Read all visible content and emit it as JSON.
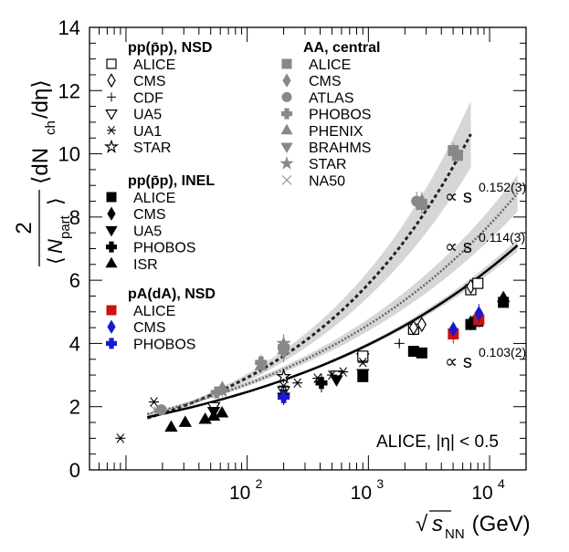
{
  "chart_data": {
    "type": "scatter",
    "xscale": "log",
    "xlim": [
      5,
      20000
    ],
    "ylim": [
      0,
      14
    ],
    "xticks": [
      {
        "v": 100,
        "b": "10",
        "e": "2"
      },
      {
        "v": 1000,
        "b": "10",
        "e": "3"
      },
      {
        "v": 10000,
        "b": "10",
        "e": "4"
      }
    ],
    "yticks": [
      0,
      2,
      4,
      6,
      8,
      10,
      12,
      14
    ],
    "xlabel": {
      "pre": "√",
      "s": "s",
      "sub": "NN",
      "post": " (GeV)"
    },
    "ylabel": {
      "num": "2",
      "den_a": "⟨",
      "den_n": "N",
      "den_sub": "part",
      "den_b": "⟩",
      "rhs_a": "⟨dN",
      "rhs_sub": "ch",
      "rhs_b": "/dη⟩"
    },
    "annotation": {
      "text": "ALICE, |η| < 0.5"
    },
    "fits": [
      {
        "name": "AA",
        "label": "∝ s",
        "exp": "0.152(3)",
        "a": 0.72,
        "b": 0.304,
        "from": 15,
        "to": 7000,
        "dash": "4,3",
        "color": "#222",
        "band": 0.3
      },
      {
        "name": "pp NSD",
        "label": "∝ s",
        "exp": "0.114(3)",
        "a": 0.95,
        "b": 0.228,
        "from": 15,
        "to": 17000,
        "dash": "2,2",
        "color": "#666",
        "band": 0.2
      },
      {
        "name": "pp INEL",
        "label": "∝ s",
        "exp": "0.103(2)",
        "a": 0.955,
        "b": 0.206,
        "from": 15,
        "to": 17000,
        "dash": "",
        "color": "#000",
        "band": 0.08
      }
    ],
    "legend_groups": [
      {
        "title": "pp(p̄p), NSD",
        "items": [
          {
            "name": "ALICE",
            "marker": "open-square",
            "color": "#000"
          },
          {
            "name": "CMS",
            "marker": "open-diamond",
            "color": "#000"
          },
          {
            "name": "CDF",
            "marker": "thin-cross",
            "color": "#000"
          },
          {
            "name": "UA5",
            "marker": "open-triangle-down",
            "color": "#000"
          },
          {
            "name": "UA1",
            "marker": "asterisk",
            "color": "#000"
          },
          {
            "name": "STAR",
            "marker": "open-star",
            "color": "#000"
          }
        ]
      },
      {
        "title": "pp(p̄p), INEL",
        "items": [
          {
            "name": "ALICE",
            "marker": "square",
            "color": "#000"
          },
          {
            "name": "CMS",
            "marker": "diamond",
            "color": "#000"
          },
          {
            "name": "UA5",
            "marker": "triangle-down",
            "color": "#000"
          },
          {
            "name": "PHOBOS",
            "marker": "cross",
            "color": "#000"
          },
          {
            "name": "ISR",
            "marker": "triangle-up",
            "color": "#000"
          }
        ]
      },
      {
        "title": "pA(dA), NSD",
        "items": [
          {
            "name": "ALICE",
            "marker": "square",
            "color": "#cc1111"
          },
          {
            "name": "CMS",
            "marker": "diamond",
            "color": "#1a1acc"
          },
          {
            "name": "PHOBOS",
            "marker": "cross",
            "color": "#1a1acc"
          }
        ]
      },
      {
        "title": "AA, central",
        "items": [
          {
            "name": "ALICE",
            "marker": "square",
            "color": "#888"
          },
          {
            "name": "CMS",
            "marker": "diamond",
            "color": "#888"
          },
          {
            "name": "ATLAS",
            "marker": "circle",
            "color": "#888"
          },
          {
            "name": "PHOBOS",
            "marker": "cross",
            "color": "#888"
          },
          {
            "name": "PHENIX",
            "marker": "triangle-up",
            "color": "#888"
          },
          {
            "name": "BRAHMS",
            "marker": "triangle-down",
            "color": "#888"
          },
          {
            "name": "STAR",
            "marker": "star",
            "color": "#888"
          },
          {
            "name": "NA50",
            "marker": "thin-x",
            "color": "#888"
          }
        ]
      }
    ],
    "series": [
      {
        "name": "AA central",
        "points": [
          {
            "x": 17.3,
            "y": 1.9,
            "m": "thin-x",
            "c": "#888",
            "e": 0.1
          },
          {
            "x": 19.6,
            "y": 1.9,
            "m": "circle",
            "c": "#888",
            "e": 0.1
          },
          {
            "x": 56,
            "y": 2.45,
            "m": "cross",
            "c": "#888",
            "e": 0.15
          },
          {
            "x": 62.4,
            "y": 2.6,
            "m": "triangle-up",
            "c": "#888",
            "e": 0.2
          },
          {
            "x": 62.4,
            "y": 2.5,
            "m": "star",
            "c": "#888",
            "e": 0.2
          },
          {
            "x": 130,
            "y": 3.4,
            "m": "cross",
            "c": "#888",
            "e": 0.25
          },
          {
            "x": 130,
            "y": 3.3,
            "m": "triangle-up",
            "c": "#888",
            "e": 0.25
          },
          {
            "x": 200,
            "y": 3.9,
            "m": "cross",
            "c": "#888",
            "e": 0.3
          },
          {
            "x": 200,
            "y": 3.8,
            "m": "triangle-up",
            "c": "#888",
            "e": 0.3
          },
          {
            "x": 200,
            "y": 3.7,
            "m": "triangle-down",
            "c": "#888",
            "e": 0.3
          },
          {
            "x": 200,
            "y": 4.0,
            "m": "star",
            "c": "#888",
            "e": 0.3
          },
          {
            "x": 2760,
            "y": 8.4,
            "m": "square",
            "c": "#888",
            "e": 0.3
          },
          {
            "x": 2760,
            "y": 8.5,
            "m": "diamond",
            "c": "#888",
            "e": 0.3
          },
          {
            "x": 2500,
            "y": 8.5,
            "m": "circle",
            "c": "#888",
            "e": 0.3
          },
          {
            "x": 5020,
            "y": 10.1,
            "m": "square",
            "c": "#888",
            "e": 0.25
          },
          {
            "x": 5440,
            "y": 9.95,
            "m": "square",
            "c": "#888",
            "e": 0.25
          }
        ]
      },
      {
        "name": "pp NSD",
        "points": [
          {
            "x": 53,
            "y": 2.0,
            "m": "open-triangle-down",
            "c": "#000",
            "e": 0.05
          },
          {
            "x": 200,
            "y": 2.5,
            "m": "open-triangle-down",
            "c": "#000",
            "e": 0.05
          },
          {
            "x": 200,
            "y": 2.95,
            "m": "open-star",
            "c": "#000",
            "e": 0.2
          },
          {
            "x": 546,
            "y": 3.0,
            "m": "open-triangle-down",
            "c": "#000",
            "e": 0.05
          },
          {
            "x": 900,
            "y": 3.55,
            "m": "open-triangle-down",
            "c": "#000",
            "e": 0.05
          },
          {
            "x": 900,
            "y": 3.6,
            "m": "open-square",
            "c": "#000",
            "e": 0.08
          },
          {
            "x": 1800,
            "y": 4.0,
            "m": "thin-cross",
            "c": "#000",
            "e": 0.08
          },
          {
            "x": 2360,
            "y": 4.45,
            "m": "open-square",
            "c": "#000",
            "e": 0.08
          },
          {
            "x": 2360,
            "y": 4.5,
            "m": "open-diamond",
            "c": "#000",
            "e": 0.1
          },
          {
            "x": 2760,
            "y": 4.6,
            "m": "open-diamond",
            "c": "#000",
            "e": 0.1
          },
          {
            "x": 7000,
            "y": 5.7,
            "m": "open-square",
            "c": "#000",
            "e": 0.12
          },
          {
            "x": 7000,
            "y": 5.8,
            "m": "open-diamond",
            "c": "#000",
            "e": 0.15
          },
          {
            "x": 8000,
            "y": 5.9,
            "m": "open-square",
            "c": "#000",
            "e": 0.12
          },
          {
            "x": 200,
            "y": 2.65,
            "m": "asterisk",
            "c": "#000",
            "e": 0.05
          },
          {
            "x": 260,
            "y": 2.75,
            "m": "asterisk",
            "c": "#000",
            "e": 0.05
          },
          {
            "x": 380,
            "y": 2.9,
            "m": "asterisk",
            "c": "#000",
            "e": 0.05
          },
          {
            "x": 500,
            "y": 3.0,
            "m": "asterisk",
            "c": "#000",
            "e": 0.05
          },
          {
            "x": 620,
            "y": 3.1,
            "m": "asterisk",
            "c": "#000",
            "e": 0.05
          },
          {
            "x": 900,
            "y": 3.4,
            "m": "asterisk",
            "c": "#000",
            "e": 0.05
          },
          {
            "x": 9,
            "y": 1.0,
            "m": "asterisk",
            "c": "#000",
            "e": 0.05
          },
          {
            "x": 17,
            "y": 2.15,
            "m": "asterisk",
            "c": "#000",
            "e": 0.05
          }
        ]
      },
      {
        "name": "pp INEL",
        "points": [
          {
            "x": 23.6,
            "y": 1.35,
            "m": "triangle-up",
            "c": "#000",
            "e": 0.05
          },
          {
            "x": 30.8,
            "y": 1.5,
            "m": "triangle-up",
            "c": "#000",
            "e": 0.05
          },
          {
            "x": 45,
            "y": 1.6,
            "m": "triangle-up",
            "c": "#000",
            "e": 0.05
          },
          {
            "x": 53,
            "y": 1.7,
            "m": "triangle-up",
            "c": "#000",
            "e": 0.05
          },
          {
            "x": 62,
            "y": 1.8,
            "m": "triangle-up",
            "c": "#000",
            "e": 0.05
          },
          {
            "x": 53,
            "y": 1.85,
            "m": "triangle-down",
            "c": "#000",
            "e": 0.05
          },
          {
            "x": 200,
            "y": 2.3,
            "m": "triangle-down",
            "c": "#000",
            "e": 0.05
          },
          {
            "x": 200,
            "y": 2.35,
            "m": "cross",
            "c": "#000",
            "e": 0.3
          },
          {
            "x": 410,
            "y": 2.75,
            "m": "cross",
            "c": "#000",
            "e": 0.3
          },
          {
            "x": 546,
            "y": 2.85,
            "m": "triangle-down",
            "c": "#000",
            "e": 0.05
          },
          {
            "x": 900,
            "y": 2.95,
            "m": "square",
            "c": "#000",
            "e": 0.08
          },
          {
            "x": 900,
            "y": 3.05,
            "m": "triangle-down",
            "c": "#000",
            "e": 0.05
          },
          {
            "x": 2360,
            "y": 3.75,
            "m": "square",
            "c": "#000",
            "e": 0.1
          },
          {
            "x": 2760,
            "y": 3.7,
            "m": "square",
            "c": "#000",
            "e": 0.1
          },
          {
            "x": 7000,
            "y": 4.6,
            "m": "square",
            "c": "#000",
            "e": 0.12
          },
          {
            "x": 7000,
            "y": 4.65,
            "m": "diamond",
            "c": "#000",
            "e": 0.15
          },
          {
            "x": 8000,
            "y": 4.7,
            "m": "square",
            "c": "#000",
            "e": 0.12
          },
          {
            "x": 13000,
            "y": 5.3,
            "m": "square",
            "c": "#000",
            "e": 0.15
          },
          {
            "x": 13000,
            "y": 5.45,
            "m": "triangle-up",
            "c": "#000",
            "e": 0.15
          }
        ]
      },
      {
        "name": "pA NSD",
        "points": [
          {
            "x": 200,
            "y": 2.3,
            "m": "cross",
            "c": "#1a1acc",
            "e": 0.1
          },
          {
            "x": 5020,
            "y": 4.3,
            "m": "square",
            "c": "#cc1111",
            "e": 0.3
          },
          {
            "x": 5020,
            "y": 4.45,
            "m": "diamond",
            "c": "#1a1acc",
            "e": 0.2
          },
          {
            "x": 8160,
            "y": 4.75,
            "m": "square",
            "c": "#cc1111",
            "e": 0.25
          },
          {
            "x": 8160,
            "y": 4.95,
            "m": "diamond",
            "c": "#1a1acc",
            "e": 0.3
          }
        ]
      }
    ]
  }
}
